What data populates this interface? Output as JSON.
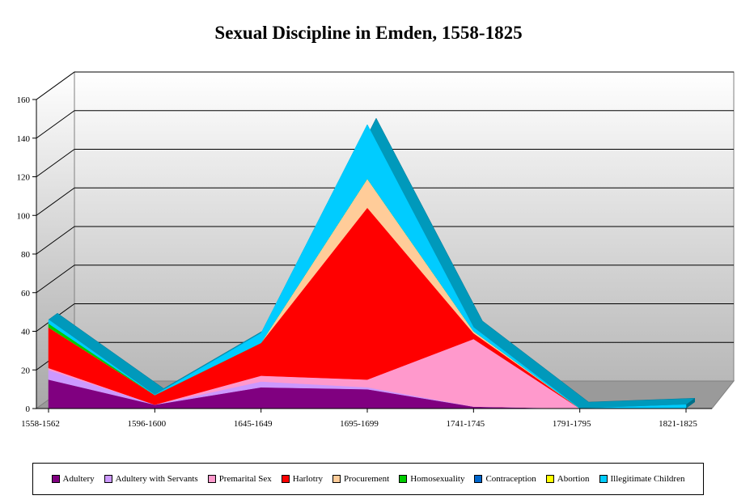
{
  "chart_data": {
    "type": "area",
    "title": "Sexual Discipline in Emden, 1558-1825",
    "xlabel": "",
    "ylabel": "",
    "categories": [
      "1558-1562",
      "1596-1600",
      "1645-1649",
      "1695-1699",
      "1741-1745",
      "1791-1795",
      "1821-1825"
    ],
    "ylim": [
      0,
      160
    ],
    "yticks": [
      0,
      20,
      40,
      60,
      80,
      100,
      120,
      140,
      160
    ],
    "stacked": true,
    "grid": true,
    "legend_position": "bottom",
    "series": [
      {
        "name": "Adultery",
        "color": "#800080",
        "values": [
          15,
          2,
          11,
          10,
          1,
          0,
          0
        ]
      },
      {
        "name": "Adultery with Servants",
        "color": "#CC99FF",
        "values": [
          5,
          0,
          3,
          1,
          0,
          0,
          0
        ]
      },
      {
        "name": "Premarital Sex",
        "color": "#FF99CC",
        "values": [
          1,
          0,
          3,
          4,
          35,
          0,
          0
        ]
      },
      {
        "name": "Harlotry",
        "color": "#FF0000",
        "values": [
          21,
          5,
          17,
          89,
          3,
          0,
          0
        ]
      },
      {
        "name": "Procurement",
        "color": "#FFCC99",
        "values": [
          0,
          0,
          0,
          15,
          1,
          0,
          0
        ]
      },
      {
        "name": "Homosexuality",
        "color": "#00CC00",
        "values": [
          2,
          0,
          0,
          0,
          0,
          0,
          0
        ]
      },
      {
        "name": "Contraception",
        "color": "#0066CC",
        "values": [
          0,
          0,
          0,
          0,
          0,
          0,
          0
        ]
      },
      {
        "name": "Abortion",
        "color": "#FFFF00",
        "values": [
          0,
          0,
          0,
          0,
          0,
          0,
          0
        ]
      },
      {
        "name": "Illegitimate Children",
        "color": "#00CCFF",
        "values": [
          2,
          0,
          5,
          28,
          2,
          0,
          2
        ]
      }
    ]
  }
}
